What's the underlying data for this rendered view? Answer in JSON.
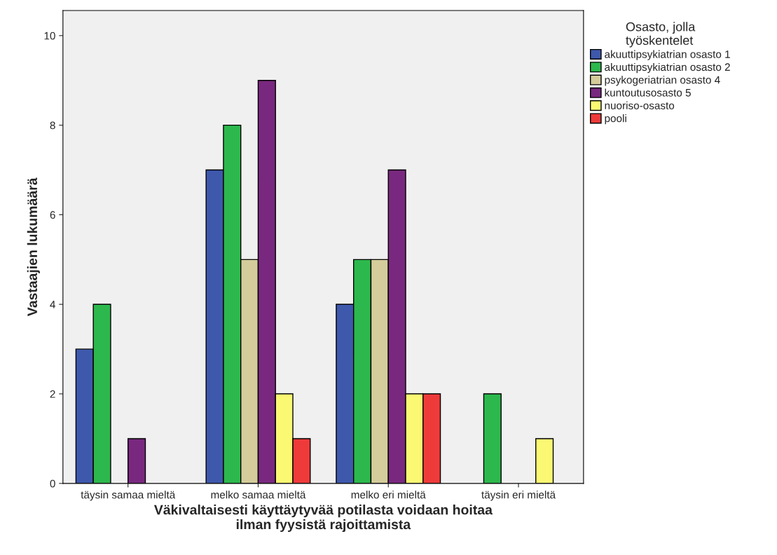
{
  "chart_data": {
    "type": "bar",
    "xlabel": "Väkivaltaisesti käyttäytyvää potilasta voidaan hoitaa\nilman fyysistä rajoittamista",
    "ylabel": "Vastaajien lukumäärä",
    "legend_title": "Osasto, jolla\ntyöskentelet",
    "legend": "top right",
    "grid": false,
    "categories": [
      "täysin samaa mieltä",
      "melko samaa mieltä",
      "melko eri mieltä",
      "täysin eri mieltä"
    ],
    "ylim": [
      0,
      10.56
    ],
    "yticks": [
      0,
      2,
      4,
      6,
      8,
      10
    ],
    "series": [
      {
        "name": "akuuttipsykiatrian osasto 1",
        "color": "#3e58ac",
        "values": [
          3,
          7,
          4,
          null
        ]
      },
      {
        "name": "akuuttipsykiatrian osasto 2",
        "color": "#2db84d",
        "values": [
          4,
          8,
          5,
          2
        ]
      },
      {
        "name": "psykogeriatrian osasto 4",
        "color": "#d4cc9a",
        "values": [
          null,
          5,
          5,
          null
        ]
      },
      {
        "name": "kuntoutusosasto 5",
        "color": "#79287f",
        "values": [
          1,
          9,
          7,
          null
        ]
      },
      {
        "name": "nuoriso-osasto",
        "color": "#fbf873",
        "values": [
          null,
          2,
          2,
          1
        ]
      },
      {
        "name": "pooli",
        "color": "#ef3a3a",
        "values": [
          null,
          1,
          2,
          null
        ]
      }
    ]
  }
}
